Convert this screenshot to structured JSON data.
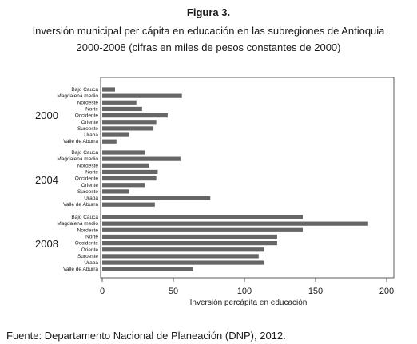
{
  "figure_label": "Figura 3.",
  "title_line1": "Inversión municipal per cápita en educación en las subregiones de Antioquia",
  "title_line2": "2000-2008 (cifras en miles de pesos constantes de 2000)",
  "source": "Fuente: Departamento Nacional de Planeación (DNP), 2012.",
  "chart_data": {
    "type": "bar",
    "orientation": "horizontal",
    "xlabel": "Inversión percápita en educación",
    "ylabel": "",
    "xlim": [
      0,
      200
    ],
    "xticks": [
      0,
      50,
      100,
      150,
      200
    ],
    "grid": false,
    "bar_color": "#666666",
    "categories": [
      "Bajo Cauca",
      "Magdalena medio",
      "Nordeste",
      "Norte",
      "Occidente",
      "Oriente",
      "Suroeste",
      "Urabá",
      "Valle de Aburrá"
    ],
    "groups": [
      {
        "label": "2000",
        "values": [
          9,
          56,
          24,
          28,
          46,
          38,
          36,
          19,
          10
        ]
      },
      {
        "label": "2004",
        "values": [
          30,
          55,
          33,
          39,
          38,
          30,
          19,
          76,
          37
        ]
      },
      {
        "label": "2008",
        "values": [
          141,
          187,
          141,
          123,
          123,
          114,
          110,
          114,
          64
        ]
      }
    ]
  }
}
